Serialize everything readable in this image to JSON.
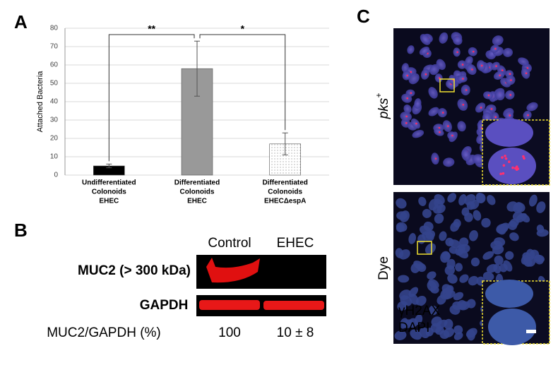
{
  "panels": {
    "a": "A",
    "b": "B",
    "c": "C"
  },
  "chart_data": {
    "type": "bar",
    "y_label": "Attached Bacteria",
    "categories": [
      [
        "Undifferentiated",
        "Colonoids",
        "EHEC"
      ],
      [
        "Differentiated",
        "Colonoids",
        "EHEC"
      ],
      [
        "Differentiated",
        "Colonoids",
        "EHECΔespA"
      ]
    ],
    "values": [
      5,
      58,
      17
    ],
    "errors": [
      1,
      15,
      6
    ],
    "colors": [
      "#000000",
      "#999999",
      "#ffffff"
    ],
    "dotted": [
      false,
      false,
      true
    ],
    "ylim": [
      0,
      80
    ],
    "yticks": [
      0,
      10,
      20,
      30,
      40,
      50,
      60,
      70,
      80
    ],
    "grid": true,
    "annotations": [
      "**",
      "*"
    ]
  },
  "blot": {
    "columns": [
      "Control",
      "EHEC"
    ],
    "rows": [
      "MUC2 (> 300 kDa)",
      "GAPDH"
    ],
    "ratio_label": "MUC2/GAPDH (%)",
    "ratio_values": [
      100,
      "10 ± 8"
    ]
  },
  "microscopy": {
    "rows": [
      {
        "label": "pks",
        "superscript": "+"
      },
      {
        "label": "Dye"
      }
    ],
    "legend": [
      {
        "text": "γH2AX",
        "color": "#e02020"
      },
      {
        "text": "DAPI",
        "color": "#3a6fd0"
      }
    ]
  }
}
